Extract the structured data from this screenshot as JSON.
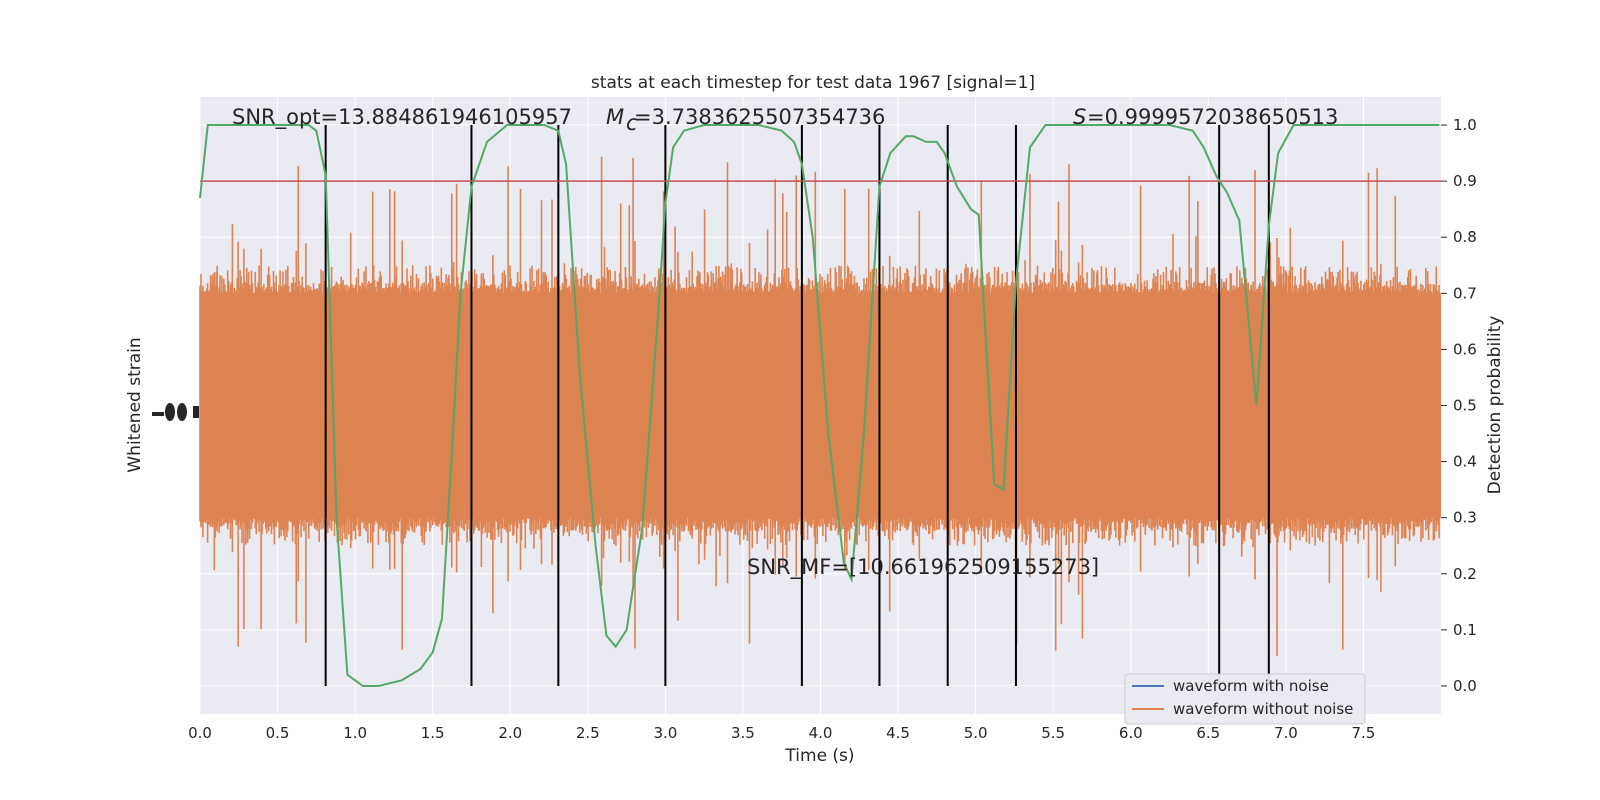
{
  "chart_data": {
    "type": "line",
    "title": "stats at each timestep for test data 1967 [signal=1]",
    "xlabel": "Time (s)",
    "ylabel_left": "Whitened strain",
    "ylabel_right": "Detection probability",
    "xlim": [
      0.0,
      8.0
    ],
    "ylim_right": [
      -0.05,
      1.05
    ],
    "x_ticks": [
      "0.0",
      "0.5",
      "1.0",
      "1.5",
      "2.0",
      "2.5",
      "3.0",
      "3.5",
      "4.0",
      "4.5",
      "5.0",
      "5.5",
      "6.0",
      "6.5",
      "7.0",
      "7.5"
    ],
    "y_right_ticks": [
      "0.0",
      "0.1",
      "0.2",
      "0.3",
      "0.4",
      "0.5",
      "0.6",
      "0.7",
      "0.8",
      "0.9",
      "1.0"
    ],
    "grid": true,
    "legend_position": "lower-right",
    "legend": [
      {
        "name": "waveform with noise",
        "color": "#4c72b0"
      },
      {
        "name": "waveform without noise",
        "color": "#dd8452"
      }
    ],
    "annotations": {
      "snr_opt": "SNR_opt=13.884861946105957",
      "mc_value": "=3.7383625507354736",
      "s_value": "=0.9999572038650513",
      "snr_mf": "SNR_MF=[10.661962509155273]"
    },
    "threshold": 0.9,
    "threshold_color": "#c44e52",
    "probability_color": "#55a868",
    "segment_markers": [
      0.81,
      1.75,
      2.31,
      3.0,
      3.88,
      4.38,
      4.82,
      5.26,
      6.57,
      6.89
    ],
    "detection_probability": {
      "x": [
        0.0,
        0.05,
        0.15,
        0.3,
        0.5,
        0.7,
        0.75,
        0.81,
        0.88,
        0.95,
        1.05,
        1.15,
        1.3,
        1.42,
        1.5,
        1.56,
        1.62,
        1.68,
        1.75,
        1.85,
        1.98,
        2.05,
        2.12,
        2.22,
        2.31,
        2.36,
        2.45,
        2.55,
        2.62,
        2.68,
        2.75,
        2.85,
        2.95,
        3.0,
        3.05,
        3.12,
        3.25,
        3.45,
        3.6,
        3.75,
        3.83,
        3.88,
        3.95,
        4.05,
        4.15,
        4.2,
        4.28,
        4.38,
        4.45,
        4.55,
        4.6,
        4.68,
        4.75,
        4.8,
        4.88,
        4.97,
        5.02,
        5.12,
        5.18,
        5.26,
        5.35,
        5.45,
        5.55,
        5.75,
        6.0,
        6.25,
        6.4,
        6.47,
        6.55,
        6.62,
        6.7,
        6.81,
        6.89,
        6.95,
        7.05,
        7.2,
        7.5,
        7.99
      ],
      "y": [
        0.87,
        1.0,
        1.0,
        1.0,
        1.0,
        1.0,
        0.99,
        0.91,
        0.3,
        0.02,
        0.0,
        0.0,
        0.01,
        0.03,
        0.06,
        0.12,
        0.4,
        0.7,
        0.89,
        0.97,
        1.0,
        1.0,
        1.0,
        1.0,
        0.99,
        0.93,
        0.55,
        0.25,
        0.09,
        0.07,
        0.1,
        0.28,
        0.65,
        0.86,
        0.96,
        0.99,
        1.0,
        1.0,
        1.0,
        0.99,
        0.97,
        0.93,
        0.8,
        0.45,
        0.22,
        0.19,
        0.45,
        0.89,
        0.95,
        0.98,
        0.98,
        0.97,
        0.97,
        0.95,
        0.89,
        0.85,
        0.84,
        0.36,
        0.35,
        0.72,
        0.96,
        1.0,
        1.0,
        1.0,
        1.0,
        1.0,
        0.99,
        0.96,
        0.91,
        0.88,
        0.83,
        0.5,
        0.82,
        0.95,
        1.0,
        1.0,
        1.0,
        1.0
      ]
    },
    "strain_envelope": {
      "x": [
        0.0,
        1.0,
        2.0,
        3.0,
        4.0,
        5.0,
        6.0,
        7.0,
        8.0
      ],
      "upper": [
        0.7,
        0.7,
        0.7,
        0.7,
        0.7,
        0.7,
        0.7,
        0.7,
        0.7
      ],
      "lower": [
        0.3,
        0.3,
        0.3,
        0.3,
        0.3,
        0.3,
        0.3,
        0.3,
        0.3
      ]
    }
  }
}
